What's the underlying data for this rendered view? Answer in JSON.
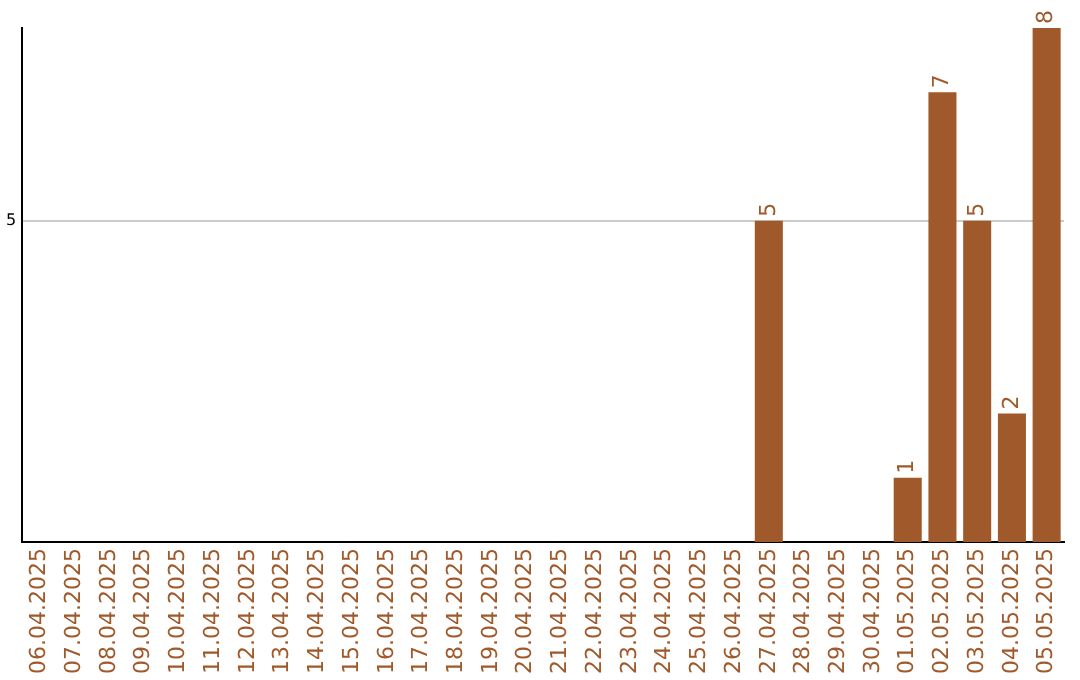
{
  "chart_data": {
    "type": "bar",
    "categories": [
      "06.04.2025",
      "07.04.2025",
      "08.04.2025",
      "09.04.2025",
      "10.04.2025",
      "11.04.2025",
      "12.04.2025",
      "13.04.2025",
      "14.04.2025",
      "15.04.2025",
      "16.04.2025",
      "17.04.2025",
      "18.04.2025",
      "19.04.2025",
      "20.04.2025",
      "21.04.2025",
      "22.04.2025",
      "23.04.2025",
      "24.04.2025",
      "25.04.2025",
      "26.04.2025",
      "27.04.2025",
      "28.04.2025",
      "29.04.2025",
      "30.04.2025",
      "01.05.2025",
      "02.05.2025",
      "03.05.2025",
      "04.05.2025",
      "05.05.2025"
    ],
    "values": [
      null,
      null,
      null,
      null,
      null,
      null,
      null,
      null,
      null,
      null,
      null,
      null,
      null,
      null,
      null,
      null,
      null,
      null,
      null,
      null,
      null,
      5,
      null,
      null,
      null,
      1,
      7,
      5,
      2,
      8
    ],
    "color": "#a0592a",
    "ylim": [
      0,
      8
    ],
    "yticks": [
      5
    ],
    "grid": "y",
    "data_labels": true,
    "legend": false
  }
}
